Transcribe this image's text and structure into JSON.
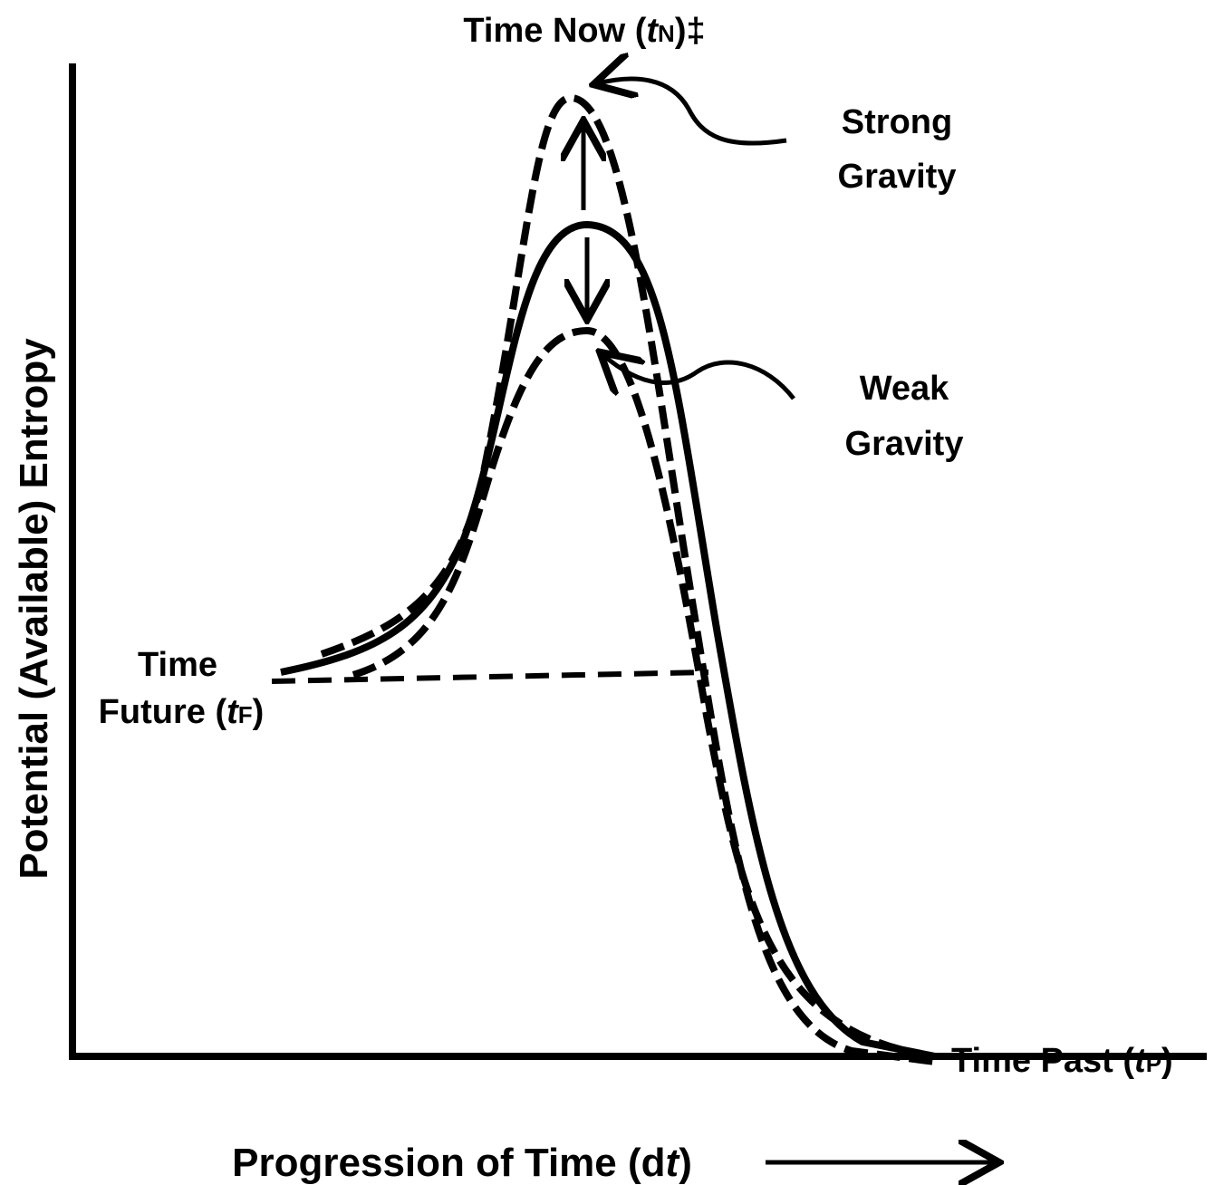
{
  "top_label": {
    "text": "Time Now (",
    "var": "t",
    "sub": "N",
    "tail": ")‡"
  },
  "strong_label": [
    "Strong",
    "Gravity"
  ],
  "weak_label": [
    "Weak",
    "Gravity"
  ],
  "future_label": {
    "line1": "Time",
    "text": "Future (",
    "var": "t",
    "sub": "F",
    "tail": ")"
  },
  "past_label": {
    "text": "Time Past (",
    "var": "t",
    "sub": "P",
    "tail": ")"
  },
  "y_axis_label": "Potential (Available) Entropy",
  "x_axis_label": {
    "text": "Progression of Time (d",
    "var": "t",
    "tail": ")"
  }
}
